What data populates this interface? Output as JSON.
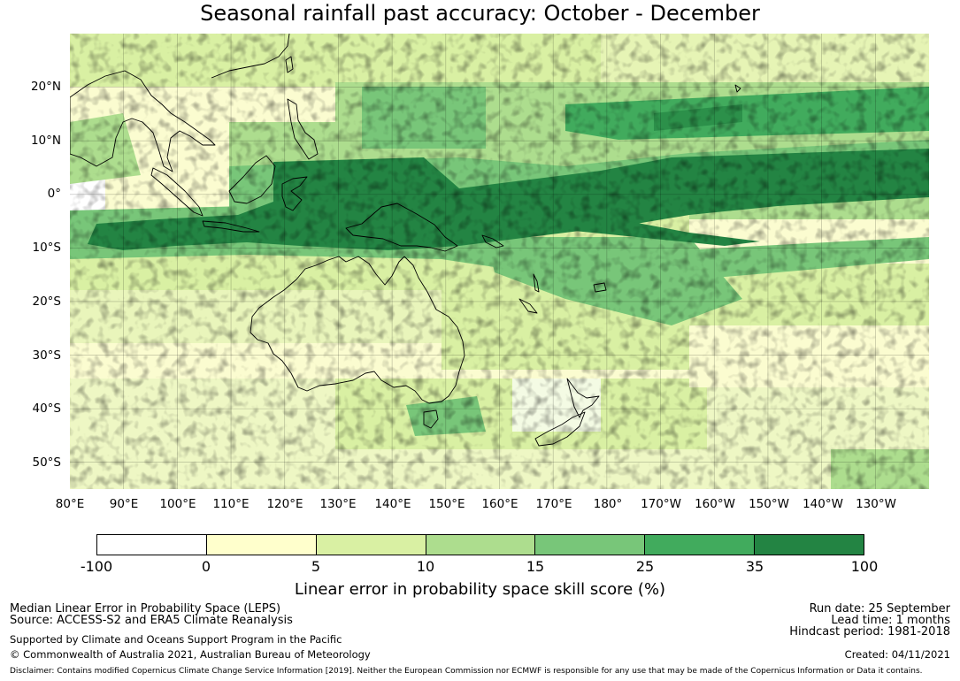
{
  "title": "Seasonal rainfall past accuracy: October - December",
  "map": {
    "lat_labels": [
      "20°N",
      "10°N",
      "0°",
      "10°S",
      "20°S",
      "30°S",
      "40°S",
      "50°S"
    ],
    "lon_labels": [
      "80°E",
      "90°E",
      "100°E",
      "110°E",
      "120°E",
      "130°E",
      "140°E",
      "150°E",
      "160°E",
      "170°E",
      "180°",
      "170°W",
      "160°W",
      "150°W",
      "140°W",
      "130°W"
    ],
    "lon_extent": [
      80,
      240
    ],
    "lat_extent": [
      -55,
      30
    ]
  },
  "legend": {
    "title": "Linear error in probability space skill score (%)",
    "tick_labels": [
      "-100",
      "0",
      "5",
      "10",
      "15",
      "25",
      "35",
      "100"
    ],
    "colors": [
      "#ffffff",
      "#ffffcc",
      "#d9f0a3",
      "#addd8e",
      "#78c679",
      "#41ab5d",
      "#238443"
    ]
  },
  "footer": {
    "product": "Median Linear Error in Probability Space (LEPS)",
    "source": "Source: ACCESS-S2 and ERA5 Climate Reanalysis",
    "support": "Supported by Climate and Oceans Support Program in the Pacific",
    "copyright": "© Commonwealth of Australia 2021, Australian Bureau of Meteorology",
    "run_date": "Run date: 25 September",
    "lead_time": "Lead time: 1 months",
    "hindcast": "Hindcast period: 1981-2018",
    "created": "Created: 04/11/2021",
    "disclaimer": "Disclaimer: Contains modified Copernicus Climate Change Service Information [2019]. Neither the European Commission nor ECMWF is responsible for any use that may be made of the Copernicus Information or Data it contains."
  }
}
